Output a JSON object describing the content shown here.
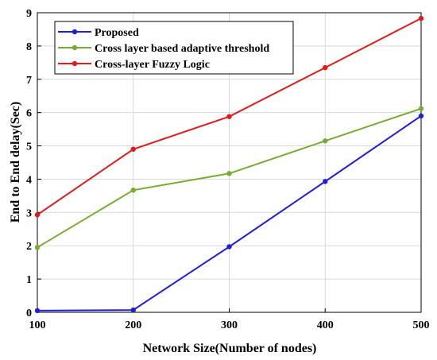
{
  "chart_data": {
    "type": "line",
    "title": "",
    "xlabel": "Network Size(Number of nodes)",
    "ylabel": "End to End delay(Sec)",
    "x": [
      100,
      200,
      300,
      400,
      500
    ],
    "xlim": [
      100,
      500
    ],
    "ylim": [
      0,
      9
    ],
    "xticks": [
      100,
      200,
      300,
      400,
      500
    ],
    "yticks": [
      0,
      1,
      2,
      3,
      4,
      5,
      6,
      7,
      8,
      9
    ],
    "grid": true,
    "legend_position": "top-left",
    "series": [
      {
        "name": "Proposed",
        "color": "#1f1fd6",
        "values": [
          0.05,
          0.07,
          1.97,
          3.93,
          5.9
        ]
      },
      {
        "name": "Cross layer based adaptive threshold",
        "color": "#77ac30",
        "values": [
          1.95,
          3.67,
          4.17,
          5.15,
          6.12
        ]
      },
      {
        "name": "Cross-layer Fuzzy Logic",
        "color": "#e01b1b",
        "values": [
          2.93,
          4.9,
          5.88,
          7.35,
          8.83
        ]
      }
    ]
  }
}
